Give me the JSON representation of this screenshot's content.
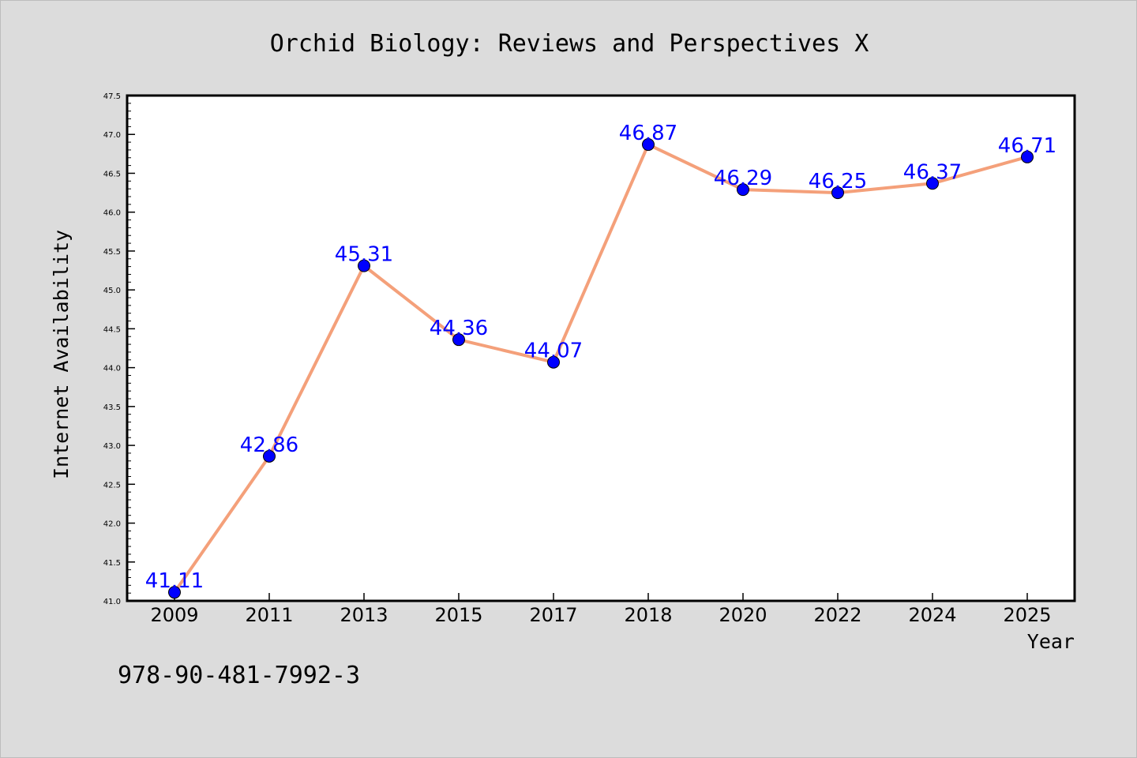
{
  "figure": {
    "isbn": "978-90-481-7992-3",
    "background": "#dcdcdc",
    "plot_background": "#ffffff"
  },
  "chart_data": {
    "type": "line",
    "title": "Orchid Biology: Reviews and Perspectives X",
    "xlabel": "Year",
    "ylabel": "Internet Availability",
    "categories": [
      "2009",
      "2011",
      "2013",
      "2015",
      "2017",
      "2018",
      "2020",
      "2022",
      "2024",
      "2025"
    ],
    "series": [
      {
        "values": [
          41.11,
          42.86,
          45.31,
          44.36,
          44.07,
          46.87,
          46.29,
          46.25,
          46.37,
          46.71
        ],
        "line_color": "#f4a07a",
        "marker_color": "#0000ff"
      }
    ],
    "data_labels": [
      "41.11",
      "42.86",
      "45.31",
      "44.36",
      "44.07",
      "46.87",
      "46.29",
      "46.25",
      "46.37",
      "46.71"
    ],
    "ylim": [
      41.0,
      47.5
    ],
    "y_major_ticks": [
      "41.0",
      "41.5",
      "42.0",
      "42.5",
      "43.0",
      "43.5",
      "44.0",
      "44.5",
      "45.0",
      "45.5",
      "46.0",
      "46.5",
      "47.0",
      "47.5"
    ],
    "grid": false,
    "legend": "none"
  }
}
